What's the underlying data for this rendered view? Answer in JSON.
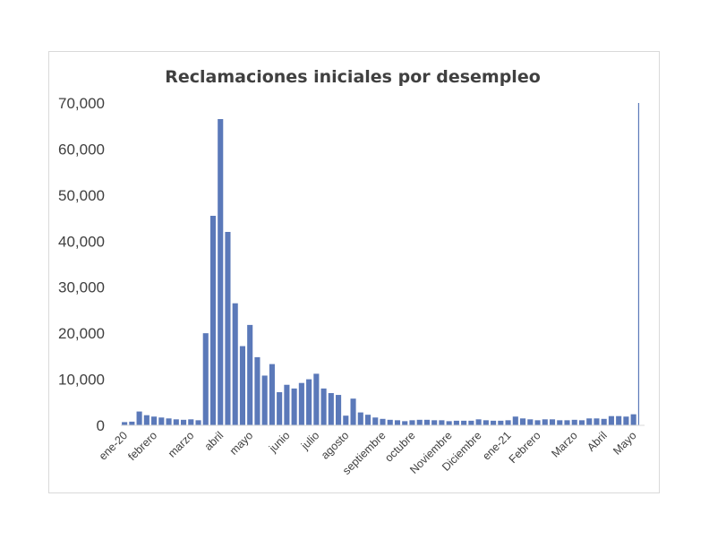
{
  "chart_data": {
    "type": "bar",
    "title": "Reclamaciones iniciales por desempleo",
    "xlabel": "",
    "ylabel": "",
    "ylim": [
      0,
      70000
    ],
    "y_ticks": [
      "0",
      "10,000",
      "20,000",
      "30,000",
      "40,000",
      "50,000",
      "60,000",
      "70,000"
    ],
    "y_tick_values": [
      0,
      10000,
      20000,
      30000,
      40000,
      50000,
      60000,
      70000
    ],
    "x_tick_labels": [
      {
        "label": "ene-20",
        "index": 0
      },
      {
        "label": "febrero",
        "index": 4
      },
      {
        "label": "marzo",
        "index": 9
      },
      {
        "label": "abril",
        "index": 13
      },
      {
        "label": "mayo",
        "index": 17
      },
      {
        "label": "junio",
        "index": 22
      },
      {
        "label": "julio",
        "index": 26
      },
      {
        "label": "agosto",
        "index": 30
      },
      {
        "label": "septiembre",
        "index": 35
      },
      {
        "label": "octubre",
        "index": 39
      },
      {
        "label": "Noviembre",
        "index": 44
      },
      {
        "label": "Diciembre",
        "index": 48
      },
      {
        "label": "ene-21",
        "index": 52
      },
      {
        "label": "Febrero",
        "index": 56
      },
      {
        "label": "Marzo",
        "index": 61
      },
      {
        "label": "Abril",
        "index": 65
      },
      {
        "label": "Mayo",
        "index": 69
      }
    ],
    "grid": false,
    "legend": "none",
    "bar_color": "#5b79b9",
    "values": [
      700,
      800,
      3000,
      2200,
      1900,
      1700,
      1500,
      1300,
      1200,
      1300,
      1100,
      20000,
      45500,
      66500,
      42000,
      26500,
      17200,
      21800,
      14800,
      10800,
      13300,
      7200,
      8800,
      8000,
      9200,
      10000,
      11200,
      8000,
      7000,
      6600,
      2100,
      5800,
      2800,
      2300,
      1700,
      1400,
      1200,
      1100,
      900,
      1100,
      1200,
      1200,
      1100,
      1100,
      900,
      1000,
      1000,
      1000,
      1300,
      1100,
      1000,
      1000,
      1100,
      1900,
      1500,
      1300,
      1100,
      1300,
      1300,
      1100,
      1100,
      1200,
      1100,
      1500,
      1500,
      1400,
      2000,
      2000,
      1900,
      2400,
      70000
    ]
  }
}
